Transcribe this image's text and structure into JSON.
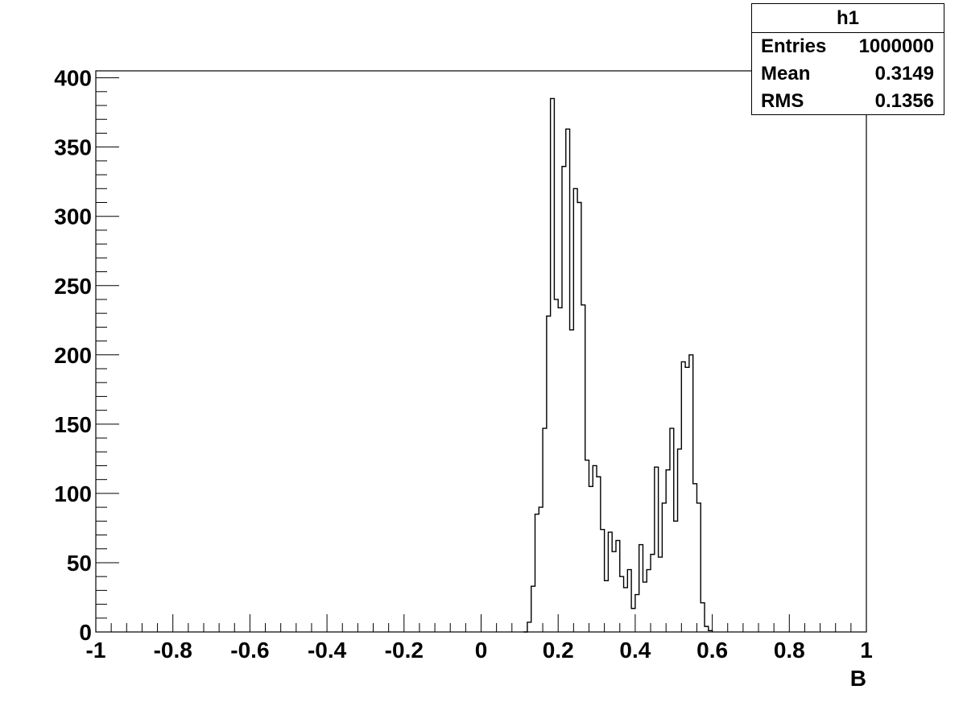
{
  "chart_data": {
    "type": "histogram",
    "title": "",
    "xlabel": "B",
    "ylabel": "",
    "xlim": [
      -1,
      1
    ],
    "ylim": [
      0,
      405
    ],
    "x_ticks": [
      -1,
      -0.8,
      -0.6,
      -0.4,
      -0.2,
      0,
      0.2,
      0.4,
      0.6,
      0.8,
      1
    ],
    "x_tick_labels": [
      "-1",
      "-0.8",
      "-0.6",
      "-0.4",
      "-0.2",
      "0",
      "0.2",
      "0.4",
      "0.6",
      "0.8",
      "1"
    ],
    "y_ticks": [
      0,
      50,
      100,
      150,
      200,
      250,
      300,
      350,
      400
    ],
    "y_tick_labels": [
      "0",
      "50",
      "100",
      "150",
      "200",
      "250",
      "300",
      "350",
      "400"
    ],
    "bin_width": 0.01,
    "bins_start": [
      0.11,
      0.12,
      0.13,
      0.14,
      0.15,
      0.16,
      0.17,
      0.18,
      0.19,
      0.2,
      0.21,
      0.22,
      0.23,
      0.24,
      0.25,
      0.26,
      0.27,
      0.28,
      0.29,
      0.3,
      0.31,
      0.32,
      0.33,
      0.34,
      0.35,
      0.36,
      0.37,
      0.38,
      0.39,
      0.4,
      0.41,
      0.42,
      0.43,
      0.44,
      0.45,
      0.46,
      0.47,
      0.48,
      0.49,
      0.5,
      0.51,
      0.52,
      0.53,
      0.54,
      0.55,
      0.56,
      0.57,
      0.58,
      0.59
    ],
    "counts": [
      0,
      7,
      33,
      85,
      90,
      147,
      228,
      385,
      240,
      234,
      336,
      363,
      218,
      320,
      310,
      236,
      124,
      105,
      120,
      112,
      74,
      37,
      72,
      58,
      66,
      40,
      32,
      45,
      17,
      27,
      63,
      36,
      45,
      56,
      119,
      54,
      93,
      117,
      147,
      80,
      132,
      195,
      191,
      200,
      107,
      93,
      21,
      4,
      1
    ],
    "grid": false,
    "legend": "none"
  },
  "stats": {
    "title": "h1",
    "rows": [
      {
        "label": "Entries",
        "value": "1000000"
      },
      {
        "label": "Mean",
        "value": "0.3149"
      },
      {
        "label": "RMS",
        "value": "0.1356"
      }
    ]
  }
}
